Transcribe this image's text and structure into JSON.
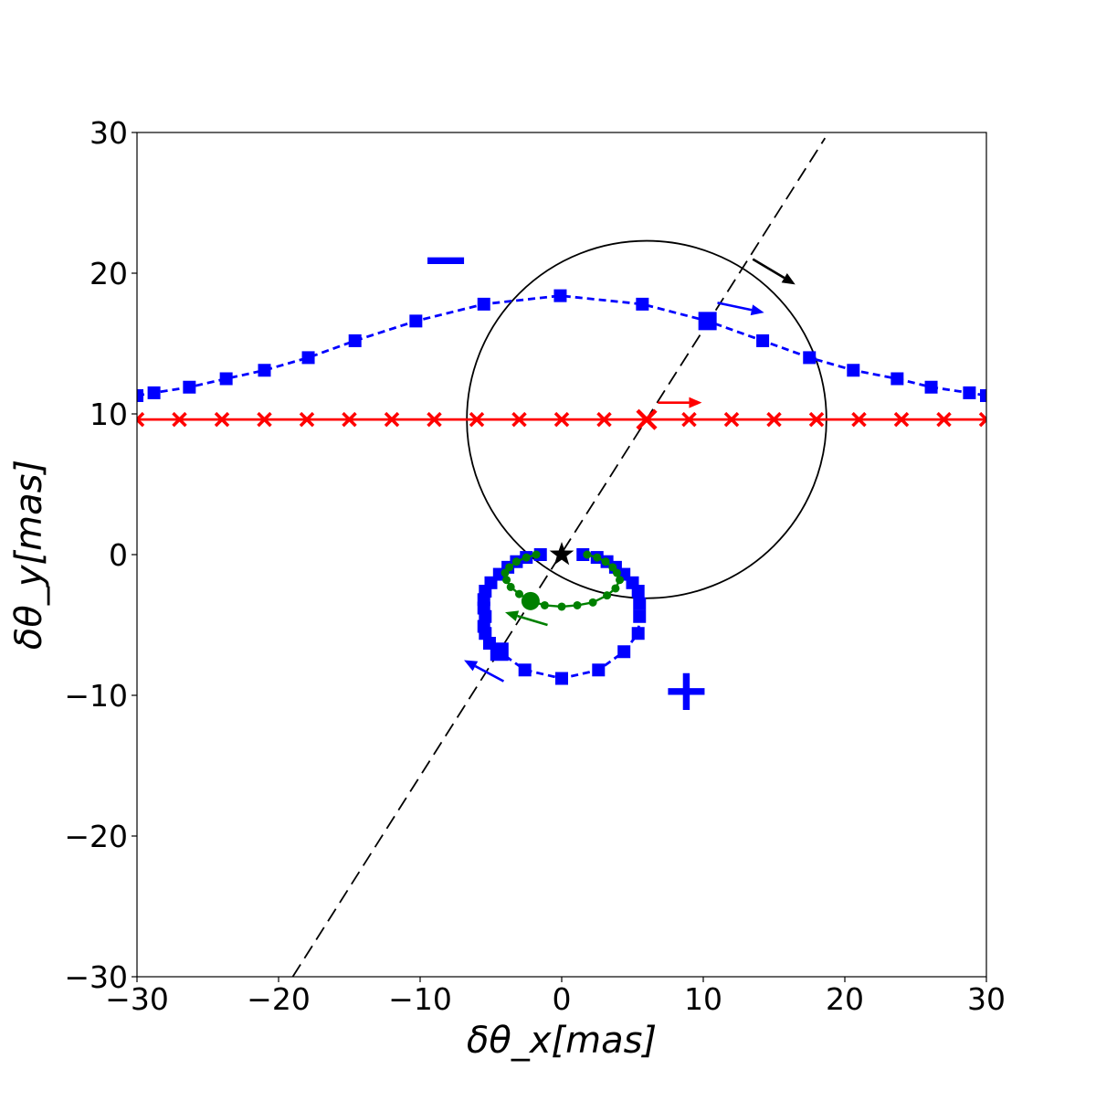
{
  "chart_data": {
    "type": "scatter",
    "title": "",
    "xlabel": "δθ_x[mas]",
    "ylabel": "δθ_y[mas]",
    "xlim": [
      -30,
      30
    ],
    "ylim": [
      -30,
      30
    ],
    "x_ticks": [
      -30,
      -20,
      -10,
      0,
      10,
      20,
      30
    ],
    "y_ticks": [
      -30,
      -20,
      -10,
      0,
      10,
      20,
      30
    ],
    "x_tick_labels": [
      "−30",
      "−20",
      "−10",
      "0",
      "10",
      "20",
      "30"
    ],
    "y_tick_labels": [
      "−30",
      "−20",
      "−10",
      "0",
      "10",
      "20",
      "30"
    ],
    "grid": false,
    "legend": "none",
    "colors": {
      "blue": "#0000ff",
      "red": "#ff0000",
      "green": "#008000",
      "black": "#000000"
    },
    "series": [
      {
        "color": "#0000ff",
        "linestyle": "dashed",
        "marker": "square",
        "x": [
          -30,
          -28.8,
          -26.3,
          -23.7,
          -21,
          -17.9,
          -14.6,
          -10.3,
          -5.5,
          -0.1,
          5.7,
          10.3,
          14.2,
          17.5,
          20.6,
          23.7,
          26.1,
          28.8,
          30
        ],
        "y": [
          11.3,
          11.5,
          11.9,
          12.5,
          13.1,
          14.0,
          15.2,
          16.6,
          17.8,
          18.4,
          17.8,
          16.6,
          15.2,
          14.0,
          13.1,
          12.5,
          11.9,
          11.5,
          11.3
        ],
        "big_marker": {
          "x": 10.3,
          "y": 16.6
        }
      },
      {
        "color": "#0000ff",
        "linestyle": "dashed",
        "marker": "square",
        "x": [
          -1.5,
          -2.5,
          -3.2,
          -3.8,
          -4.4,
          -5.0,
          -5.4,
          -5.5,
          -5.5,
          -5.4,
          -5.5,
          -5.4,
          -5.1,
          -4.4,
          -2.6,
          0,
          2.6,
          4.4,
          5.4,
          5.5,
          5.5,
          5.4,
          5.0,
          4.4,
          3.8,
          3.2,
          2.5,
          1.5
        ],
        "y": [
          0,
          -0.2,
          -0.5,
          -0.9,
          -1.4,
          -2.0,
          -2.6,
          -3.2,
          -3.8,
          -4.4,
          -5.1,
          -5.6,
          -6.3,
          -6.9,
          -8.2,
          -8.8,
          -8.2,
          -6.9,
          -5.6,
          -4.4,
          -3.5,
          -2.6,
          -2.0,
          -1.4,
          -0.9,
          -0.5,
          -0.2,
          0
        ],
        "big_marker": {
          "x": -4.4,
          "y": -6.9
        }
      },
      {
        "color": "#ff0000",
        "linestyle": "solid",
        "marker": "x",
        "x": [
          -30,
          -27,
          -24,
          -21,
          -18,
          -15,
          -12,
          -9,
          -6,
          -3,
          0,
          3,
          6,
          9,
          12,
          15,
          18,
          21,
          24,
          27,
          30
        ],
        "y": [
          9.6,
          9.6,
          9.6,
          9.6,
          9.6,
          9.6,
          9.6,
          9.6,
          9.6,
          9.6,
          9.6,
          9.6,
          9.6,
          9.6,
          9.6,
          9.6,
          9.6,
          9.6,
          9.6,
          9.6,
          9.6
        ],
        "big_marker": {
          "x": 6,
          "y": 9.6
        }
      },
      {
        "color": "#008000",
        "linestyle": "solid",
        "marker": "circle",
        "x": [
          1.8,
          2.5,
          3.1,
          3.6,
          3.9,
          4.1,
          3.8,
          3.2,
          2.2,
          1.1,
          0,
          -1.2,
          -2.2,
          -3.0,
          -3.6,
          -3.9,
          -4.0,
          -3.7,
          -3.2,
          -2.5,
          -1.8
        ],
        "y": [
          0,
          -0.2,
          -0.5,
          -0.9,
          -1.3,
          -1.8,
          -2.4,
          -2.9,
          -3.4,
          -3.6,
          -3.7,
          -3.6,
          -3.3,
          -2.8,
          -2.3,
          -1.8,
          -1.3,
          -0.9,
          -0.5,
          -0.2,
          0
        ],
        "big_marker": {
          "x": -2.2,
          "y": -3.3
        }
      }
    ],
    "circle": {
      "cx": 6,
      "cy": 9.6,
      "r": 12.7,
      "color": "#000000"
    },
    "dashed_line": {
      "x": [
        -19,
        18.6
      ],
      "y": [
        -30,
        29.6
      ],
      "color": "#000000"
    },
    "star": {
      "x": 0,
      "y": 0,
      "color": "#000000"
    },
    "arrows": [
      {
        "x1": 13.5,
        "y1": 21.0,
        "x2": 16.5,
        "y2": 19.2,
        "color": "#000000"
      },
      {
        "x1": 11.0,
        "y1": 17.9,
        "x2": 14.3,
        "y2": 17.2,
        "color": "#0000ff"
      },
      {
        "x1": 6.8,
        "y1": 10.8,
        "x2": 9.9,
        "y2": 10.8,
        "color": "#ff0000"
      },
      {
        "x1": -1.0,
        "y1": -5.0,
        "x2": -4.0,
        "y2": -4.1,
        "color": "#008000"
      },
      {
        "x1": -4.1,
        "y1": -9.0,
        "x2": -6.9,
        "y2": -7.5,
        "color": "#0000ff"
      }
    ],
    "annotations": [
      {
        "text": "−",
        "x": -8.2,
        "y": 21.0,
        "color": "#0000ff"
      },
      {
        "text": "+",
        "x": 8.8,
        "y": -9.6,
        "color": "#0000ff"
      }
    ]
  }
}
